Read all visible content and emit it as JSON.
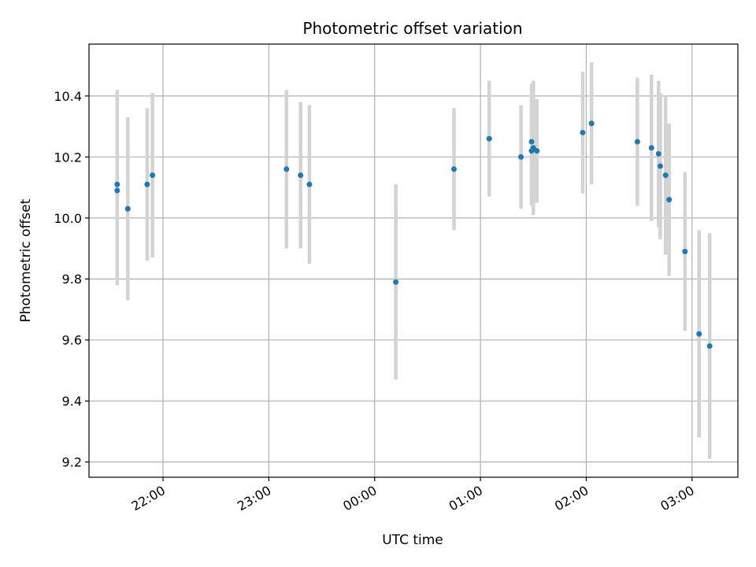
{
  "chart_data": {
    "type": "scatter",
    "title": "Photometric offset variation",
    "xlabel": "UTC time",
    "ylabel": "Photometric offset",
    "x_ticks": [
      "22:00",
      "23:00",
      "00:00",
      "01:00",
      "02:00",
      "03:00"
    ],
    "y_ticks": [
      "9.2",
      "9.4",
      "9.6",
      "9.8",
      "10.0",
      "10.2",
      "10.4"
    ],
    "xlim": [
      "21:18",
      "03:26"
    ],
    "ylim": [
      9.15,
      10.57
    ],
    "grid": true,
    "colors": {
      "points": "#1f77b4",
      "errorbars": "#d3d3d3",
      "grid": "#b0b0b0"
    },
    "points": [
      {
        "t": "21:34",
        "y": 10.11,
        "err": 0.31
      },
      {
        "t": "21:34",
        "y": 10.09,
        "err": 0.31
      },
      {
        "t": "21:40",
        "y": 10.03,
        "err": 0.3
      },
      {
        "t": "21:51",
        "y": 10.11,
        "err": 0.25
      },
      {
        "t": "21:54",
        "y": 10.14,
        "err": 0.27
      },
      {
        "t": "23:10",
        "y": 10.16,
        "err": 0.26
      },
      {
        "t": "23:18",
        "y": 10.14,
        "err": 0.24
      },
      {
        "t": "23:23",
        "y": 10.11,
        "err": 0.26
      },
      {
        "t": "00:12",
        "y": 9.79,
        "err": 0.32
      },
      {
        "t": "00:45",
        "y": 10.16,
        "err": 0.2
      },
      {
        "t": "01:05",
        "y": 10.26,
        "err": 0.19
      },
      {
        "t": "01:23",
        "y": 10.2,
        "err": 0.17
      },
      {
        "t": "01:29",
        "y": 10.25,
        "err": 0.19
      },
      {
        "t": "01:29",
        "y": 10.22,
        "err": 0.18
      },
      {
        "t": "01:30",
        "y": 10.23,
        "err": 0.22
      },
      {
        "t": "01:32",
        "y": 10.22,
        "err": 0.17
      },
      {
        "t": "01:58",
        "y": 10.28,
        "err": 0.2
      },
      {
        "t": "02:03",
        "y": 10.31,
        "err": 0.2
      },
      {
        "t": "02:29",
        "y": 10.25,
        "err": 0.21
      },
      {
        "t": "02:37",
        "y": 10.23,
        "err": 0.24
      },
      {
        "t": "02:41",
        "y": 10.21,
        "err": 0.24
      },
      {
        "t": "02:42",
        "y": 10.17,
        "err": 0.24
      },
      {
        "t": "02:45",
        "y": 10.14,
        "err": 0.26
      },
      {
        "t": "02:47",
        "y": 10.06,
        "err": 0.25
      },
      {
        "t": "02:56",
        "y": 9.89,
        "err": 0.26
      },
      {
        "t": "03:04",
        "y": 9.62,
        "err": 0.34
      },
      {
        "t": "03:10",
        "y": 9.58,
        "err": 0.37
      }
    ]
  }
}
